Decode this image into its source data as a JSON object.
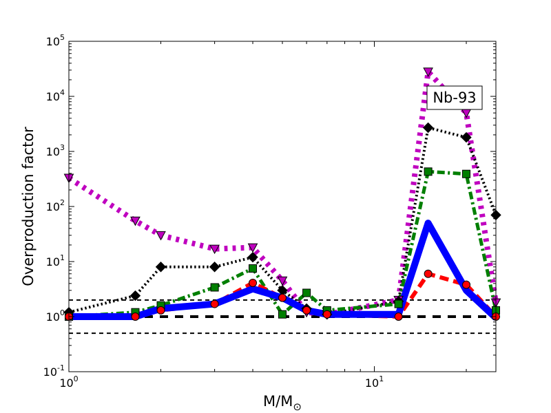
{
  "chart_data": {
    "type": "line",
    "title": "",
    "xlabel": "M/M",
    "xlabel_subscript": "⊙",
    "ylabel": "Overproduction factor",
    "xscale": "log",
    "yscale": "log",
    "xlim": [
      1,
      25
    ],
    "ylim": [
      0.1,
      100000
    ],
    "grid": false,
    "legend": "none",
    "annotation": {
      "text": "Nb-93",
      "position": "top-right"
    },
    "x_ticks": [
      {
        "value": 1,
        "base": "10",
        "exp": "0"
      },
      {
        "value": 10,
        "base": "10",
        "exp": "1"
      }
    ],
    "y_ticks": [
      {
        "value": 0.1,
        "base": "10",
        "exp": "-1"
      },
      {
        "value": 1,
        "base": "10",
        "exp": "0"
      },
      {
        "value": 10,
        "base": "10",
        "exp": "1"
      },
      {
        "value": 100,
        "base": "10",
        "exp": "2"
      },
      {
        "value": 1000,
        "base": "10",
        "exp": "3"
      },
      {
        "value": 10000,
        "base": "10",
        "exp": "4"
      },
      {
        "value": 100000,
        "base": "10",
        "exp": "5"
      }
    ],
    "reference_lines": [
      {
        "y": 2,
        "color": "#000000",
        "style": "dashed",
        "width": 2
      },
      {
        "y": 1,
        "color": "#000000",
        "style": "dashed",
        "width": 4
      },
      {
        "y": 0.5,
        "color": "#000000",
        "style": "dashed",
        "width": 2
      }
    ],
    "series": [
      {
        "color": "#bf00bf",
        "style": "dotted",
        "width": 8,
        "marker": "triangle-down",
        "x": [
          1,
          1.65,
          2,
          3,
          4,
          5,
          6,
          7,
          12,
          15,
          20,
          25
        ],
        "y": [
          330,
          55,
          30,
          17,
          18,
          4.5,
          1.2,
          1.1,
          2.0,
          28000,
          5000,
          1.8
        ]
      },
      {
        "color": "#000000",
        "style": "dotted",
        "width": 4,
        "marker": "diamond",
        "x": [
          1,
          1.65,
          2,
          3,
          4,
          5,
          6,
          7,
          12,
          15,
          20,
          25
        ],
        "y": [
          1.2,
          2.4,
          8,
          8,
          12,
          3.0,
          1.4,
          1.1,
          1.9,
          2700,
          1800,
          70
        ]
      },
      {
        "color": "#007f00",
        "style": "dashdot",
        "width": 5,
        "marker": "square",
        "x": [
          1,
          1.65,
          2,
          3,
          4,
          5,
          6,
          7,
          12,
          15,
          20,
          25
        ],
        "y": [
          1.0,
          1.2,
          1.6,
          3.4,
          7.5,
          1.1,
          2.7,
          1.3,
          1.7,
          430,
          390,
          1.3
        ]
      },
      {
        "color": "#ff0000",
        "style": "dashed",
        "width": 6,
        "marker": "circle",
        "x": [
          1,
          1.65,
          2,
          3,
          4,
          5,
          6,
          7,
          12,
          15,
          20,
          25
        ],
        "y": [
          1.0,
          1.0,
          1.3,
          1.7,
          4.1,
          2.2,
          1.3,
          1.1,
          1.0,
          6.0,
          3.8,
          1.0
        ]
      },
      {
        "color": "#0000ff",
        "style": "solid",
        "width": 10,
        "marker": "none",
        "x": [
          1,
          1.65,
          2,
          3,
          4,
          5,
          6,
          7,
          12,
          15,
          20,
          25
        ],
        "y": [
          1.0,
          1.0,
          1.4,
          1.7,
          3.2,
          2.2,
          1.3,
          1.1,
          1.1,
          50,
          3.0,
          0.95
        ]
      }
    ]
  }
}
